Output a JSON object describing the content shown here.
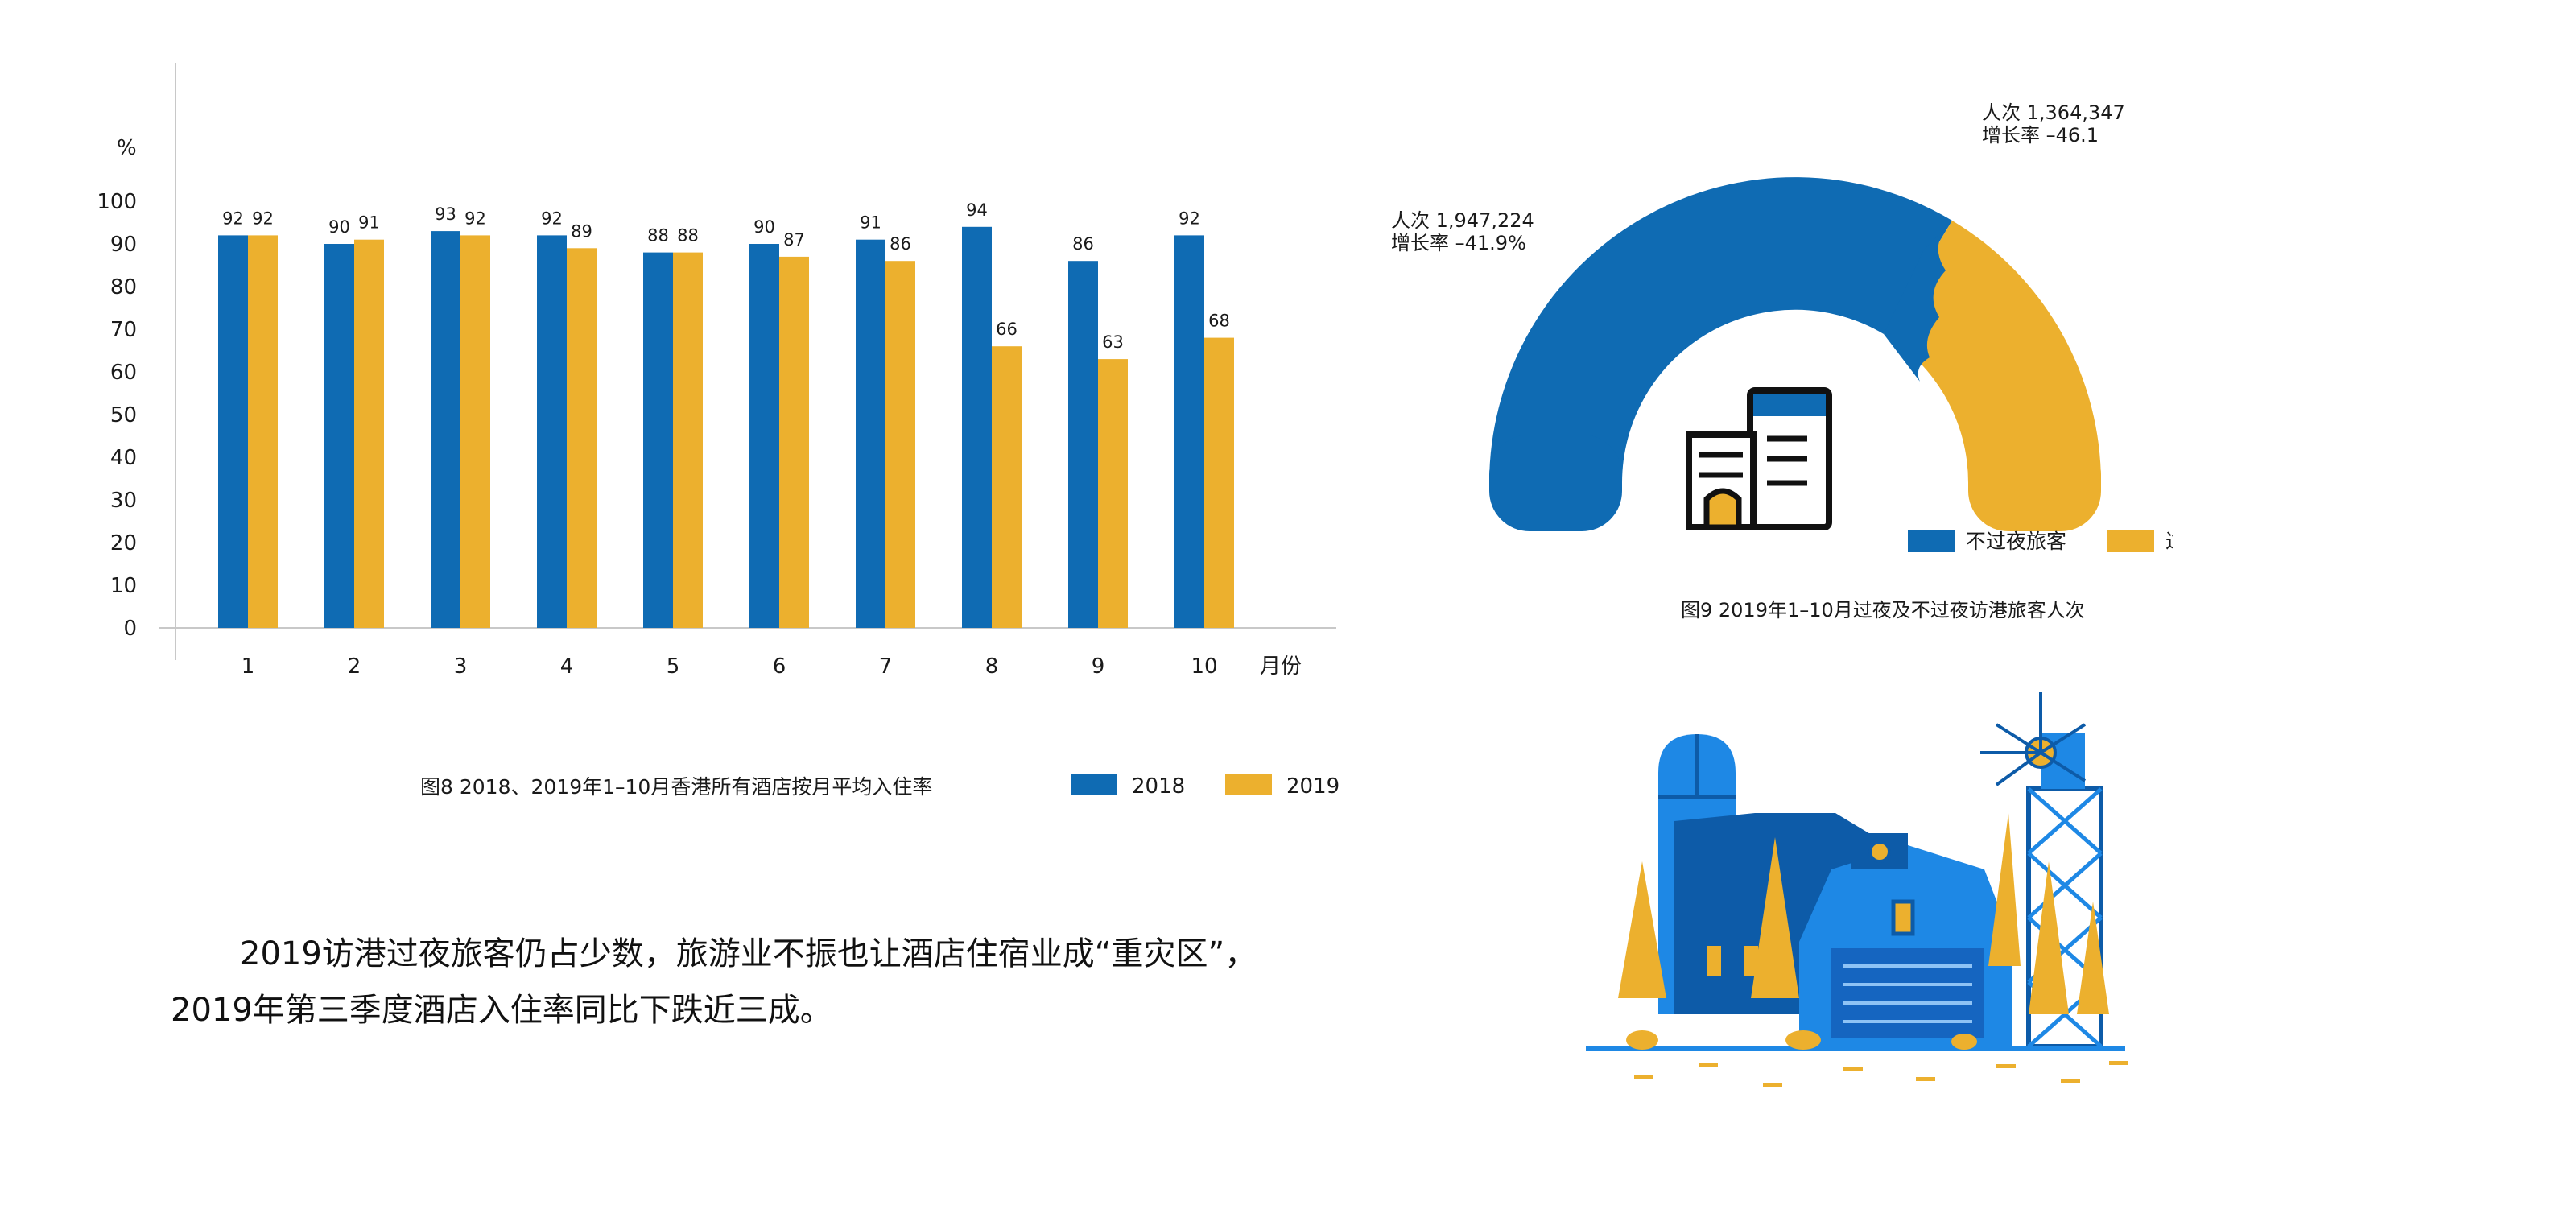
{
  "colors": {
    "blue": "#0f6bb3",
    "yellow": "#ecb02e",
    "axis": "#c8c8c8",
    "text": "#1a1a1a",
    "illustration_blue": "#1e88e5",
    "illustration_dark": "#0d5ba8"
  },
  "chart_data": [
    {
      "type": "bar",
      "title": "图8  2018、2019年1–10月香港所有酒店按月平均入住率",
      "ylabel": "%",
      "xlabel": "月份",
      "ylim": [
        0,
        100
      ],
      "yticks": [
        0,
        10,
        20,
        30,
        40,
        50,
        60,
        70,
        80,
        90,
        100
      ],
      "categories": [
        "1",
        "2",
        "3",
        "4",
        "5",
        "6",
        "7",
        "8",
        "9",
        "10"
      ],
      "series": [
        {
          "name": "2018",
          "color": "#0f6bb3",
          "values": [
            92,
            90,
            93,
            92,
            88,
            90,
            91,
            94,
            86,
            92
          ]
        },
        {
          "name": "2019",
          "color": "#ecb02e",
          "values": [
            92,
            91,
            92,
            89,
            88,
            87,
            86,
            66,
            63,
            68
          ]
        }
      ],
      "legend": "bottom-right",
      "grid": false
    },
    {
      "type": "pie",
      "variant": "half-donut",
      "title": "图9  2019年1–10月过夜及不过夜访港旅客人次",
      "legend": "bottom",
      "slices": [
        {
          "name": "不过夜旅客",
          "value": 1947224,
          "color": "#0f6bb3",
          "label_line1": "人次  1,947,224",
          "label_line2": "增长率  –41.9%"
        },
        {
          "name": "过夜旅客",
          "value": 1364347,
          "color": "#ecb02e",
          "label_line1": "人次  1,364,347",
          "label_line2": "增长率  –46.1"
        }
      ]
    }
  ],
  "article": {
    "line1": "2019访港过夜旅客仍占少数，旅游业不振也让酒店住宿业成“重灾区”，",
    "line2": "2019年第三季度酒店入住率同比下跌近三成。"
  },
  "icons": {
    "donut_center": "hotel-building-icon",
    "illustration": "farm-barn-silo-windmill-illustration"
  }
}
